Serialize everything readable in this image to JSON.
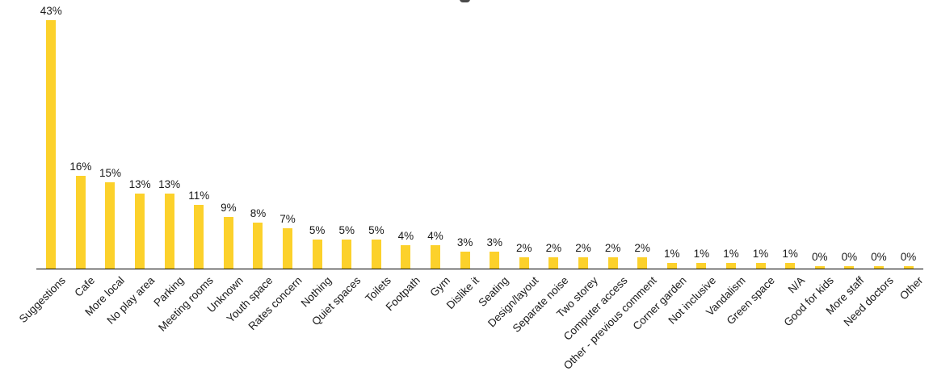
{
  "colors": {
    "bar": "#FCD12B",
    "axis": "#000000",
    "text": "#1a1a1a",
    "title_fragment": "#4a4a4a"
  },
  "chart_data": {
    "type": "bar",
    "orientation": "vertical",
    "title": "",
    "xlabel": "",
    "ylabel": "",
    "unit": "%",
    "ylim": [
      0,
      45
    ],
    "grid": false,
    "legend": false,
    "categories": [
      "Suggestions",
      "Cafe",
      "More local",
      "No play area",
      "Parking",
      "Meeting rooms",
      "Unknown",
      "Youth space",
      "Rates concern",
      "Nothing",
      "Quiet spaces",
      "Toilets",
      "Footpath",
      "Gym",
      "Dislike it",
      "Seating",
      "Design/layout",
      "Separate noise",
      "Two storey",
      "Computer access",
      "Other - previous comment",
      "Corner garden",
      "Not inclusive",
      "Vandalism",
      "Green space",
      "N/A",
      "Good for kids",
      "More staff",
      "Need doctors",
      "Other"
    ],
    "values": [
      43,
      16,
      15,
      13,
      13,
      11,
      9,
      8,
      7,
      5,
      5,
      5,
      4,
      4,
      3,
      3,
      2,
      2,
      2,
      2,
      2,
      1,
      1,
      1,
      1,
      1,
      0,
      0,
      0,
      0
    ],
    "data_labels": [
      "43%",
      "16%",
      "15%",
      "13%",
      "13%",
      "11%",
      "9%",
      "8%",
      "7%",
      "5%",
      "5%",
      "5%",
      "4%",
      "4%",
      "3%",
      "3%",
      "2%",
      "2%",
      "2%",
      "2%",
      "2%",
      "1%",
      "1%",
      "1%",
      "1%",
      "1%",
      "0%",
      "0%",
      "0%",
      "0%"
    ]
  }
}
